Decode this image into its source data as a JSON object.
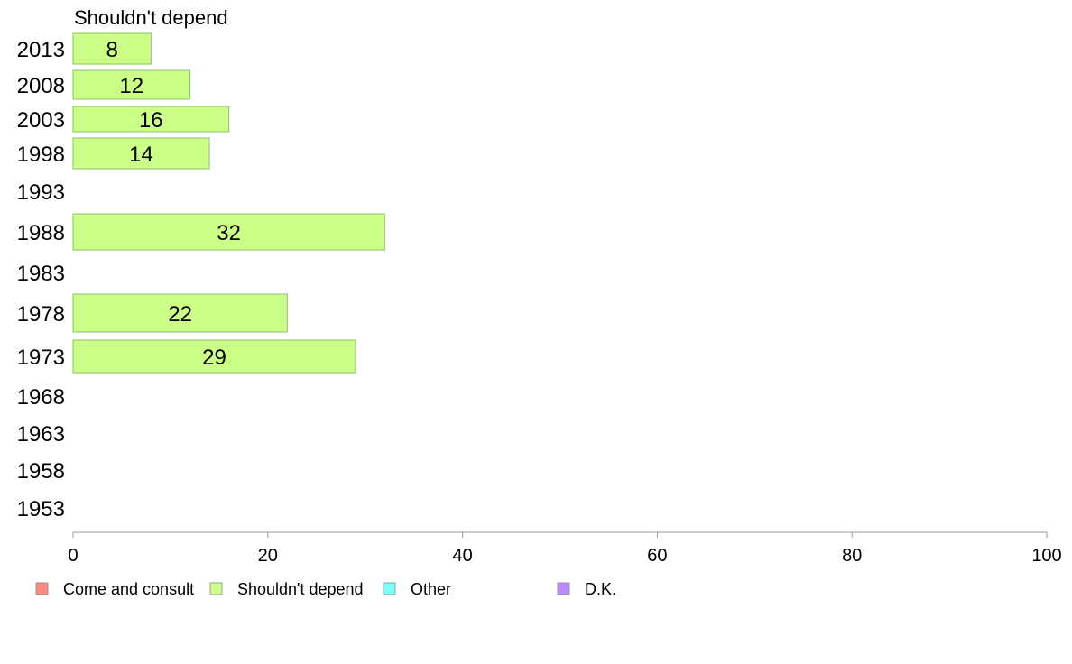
{
  "chart_data": {
    "type": "bar",
    "orientation": "horizontal",
    "title": "Shouldn't depend",
    "categories": [
      "2013",
      "2008",
      "2003",
      "1998",
      "1993",
      "1988",
      "1983",
      "1978",
      "1973",
      "1968",
      "1963",
      "1958",
      "1953"
    ],
    "series": [
      {
        "name": "Shouldn't depend",
        "color": "#ccff88",
        "values": [
          8,
          12,
          16,
          14,
          null,
          32,
          null,
          22,
          29,
          null,
          null,
          null,
          null
        ]
      }
    ],
    "xlim": [
      0,
      100
    ],
    "xticks": [
      0,
      20,
      40,
      60,
      80,
      100
    ],
    "legend": {
      "placement": "bottom",
      "items": [
        {
          "label": "Come and consult",
          "color": "#ff8a84"
        },
        {
          "label": "Shouldn't depend",
          "color": "#ccff88"
        },
        {
          "label": "Other",
          "color": "#7ffff8"
        },
        {
          "label": "D.K.",
          "color": "#bb88ff"
        }
      ]
    }
  }
}
